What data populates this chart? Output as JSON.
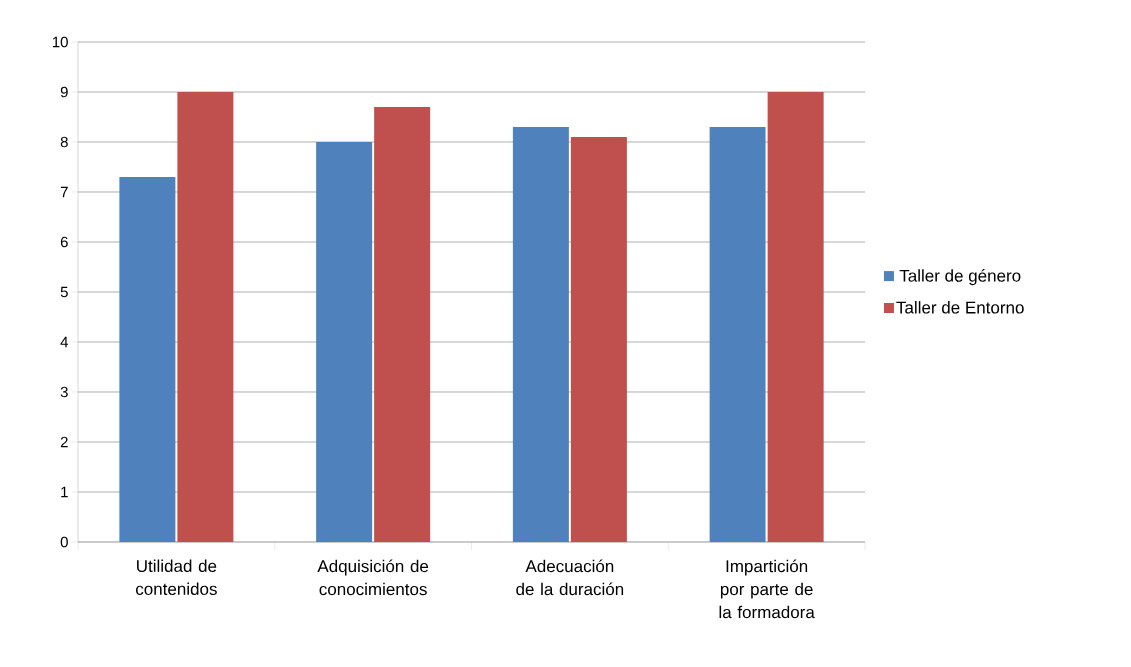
{
  "chart_data": {
    "type": "bar",
    "categories": [
      "Utilidad de contenidos",
      "Adquisición de conocimientos",
      "Adecuación de la duración",
      "Impartición por parte de la formadora"
    ],
    "series": [
      {
        "name": "Taller de género",
        "color": "#4f81bd",
        "values": [
          7.3,
          8.0,
          8.3,
          8.3
        ]
      },
      {
        "name": "Taller de Entorno",
        "color": "#c0504d",
        "values": [
          9.0,
          8.7,
          8.1,
          9.0
        ]
      }
    ],
    "ylim": [
      0,
      10
    ],
    "yticks": [
      0,
      1,
      2,
      3,
      4,
      5,
      6,
      7,
      8,
      9,
      10
    ],
    "grid": "y",
    "legend": "right"
  }
}
